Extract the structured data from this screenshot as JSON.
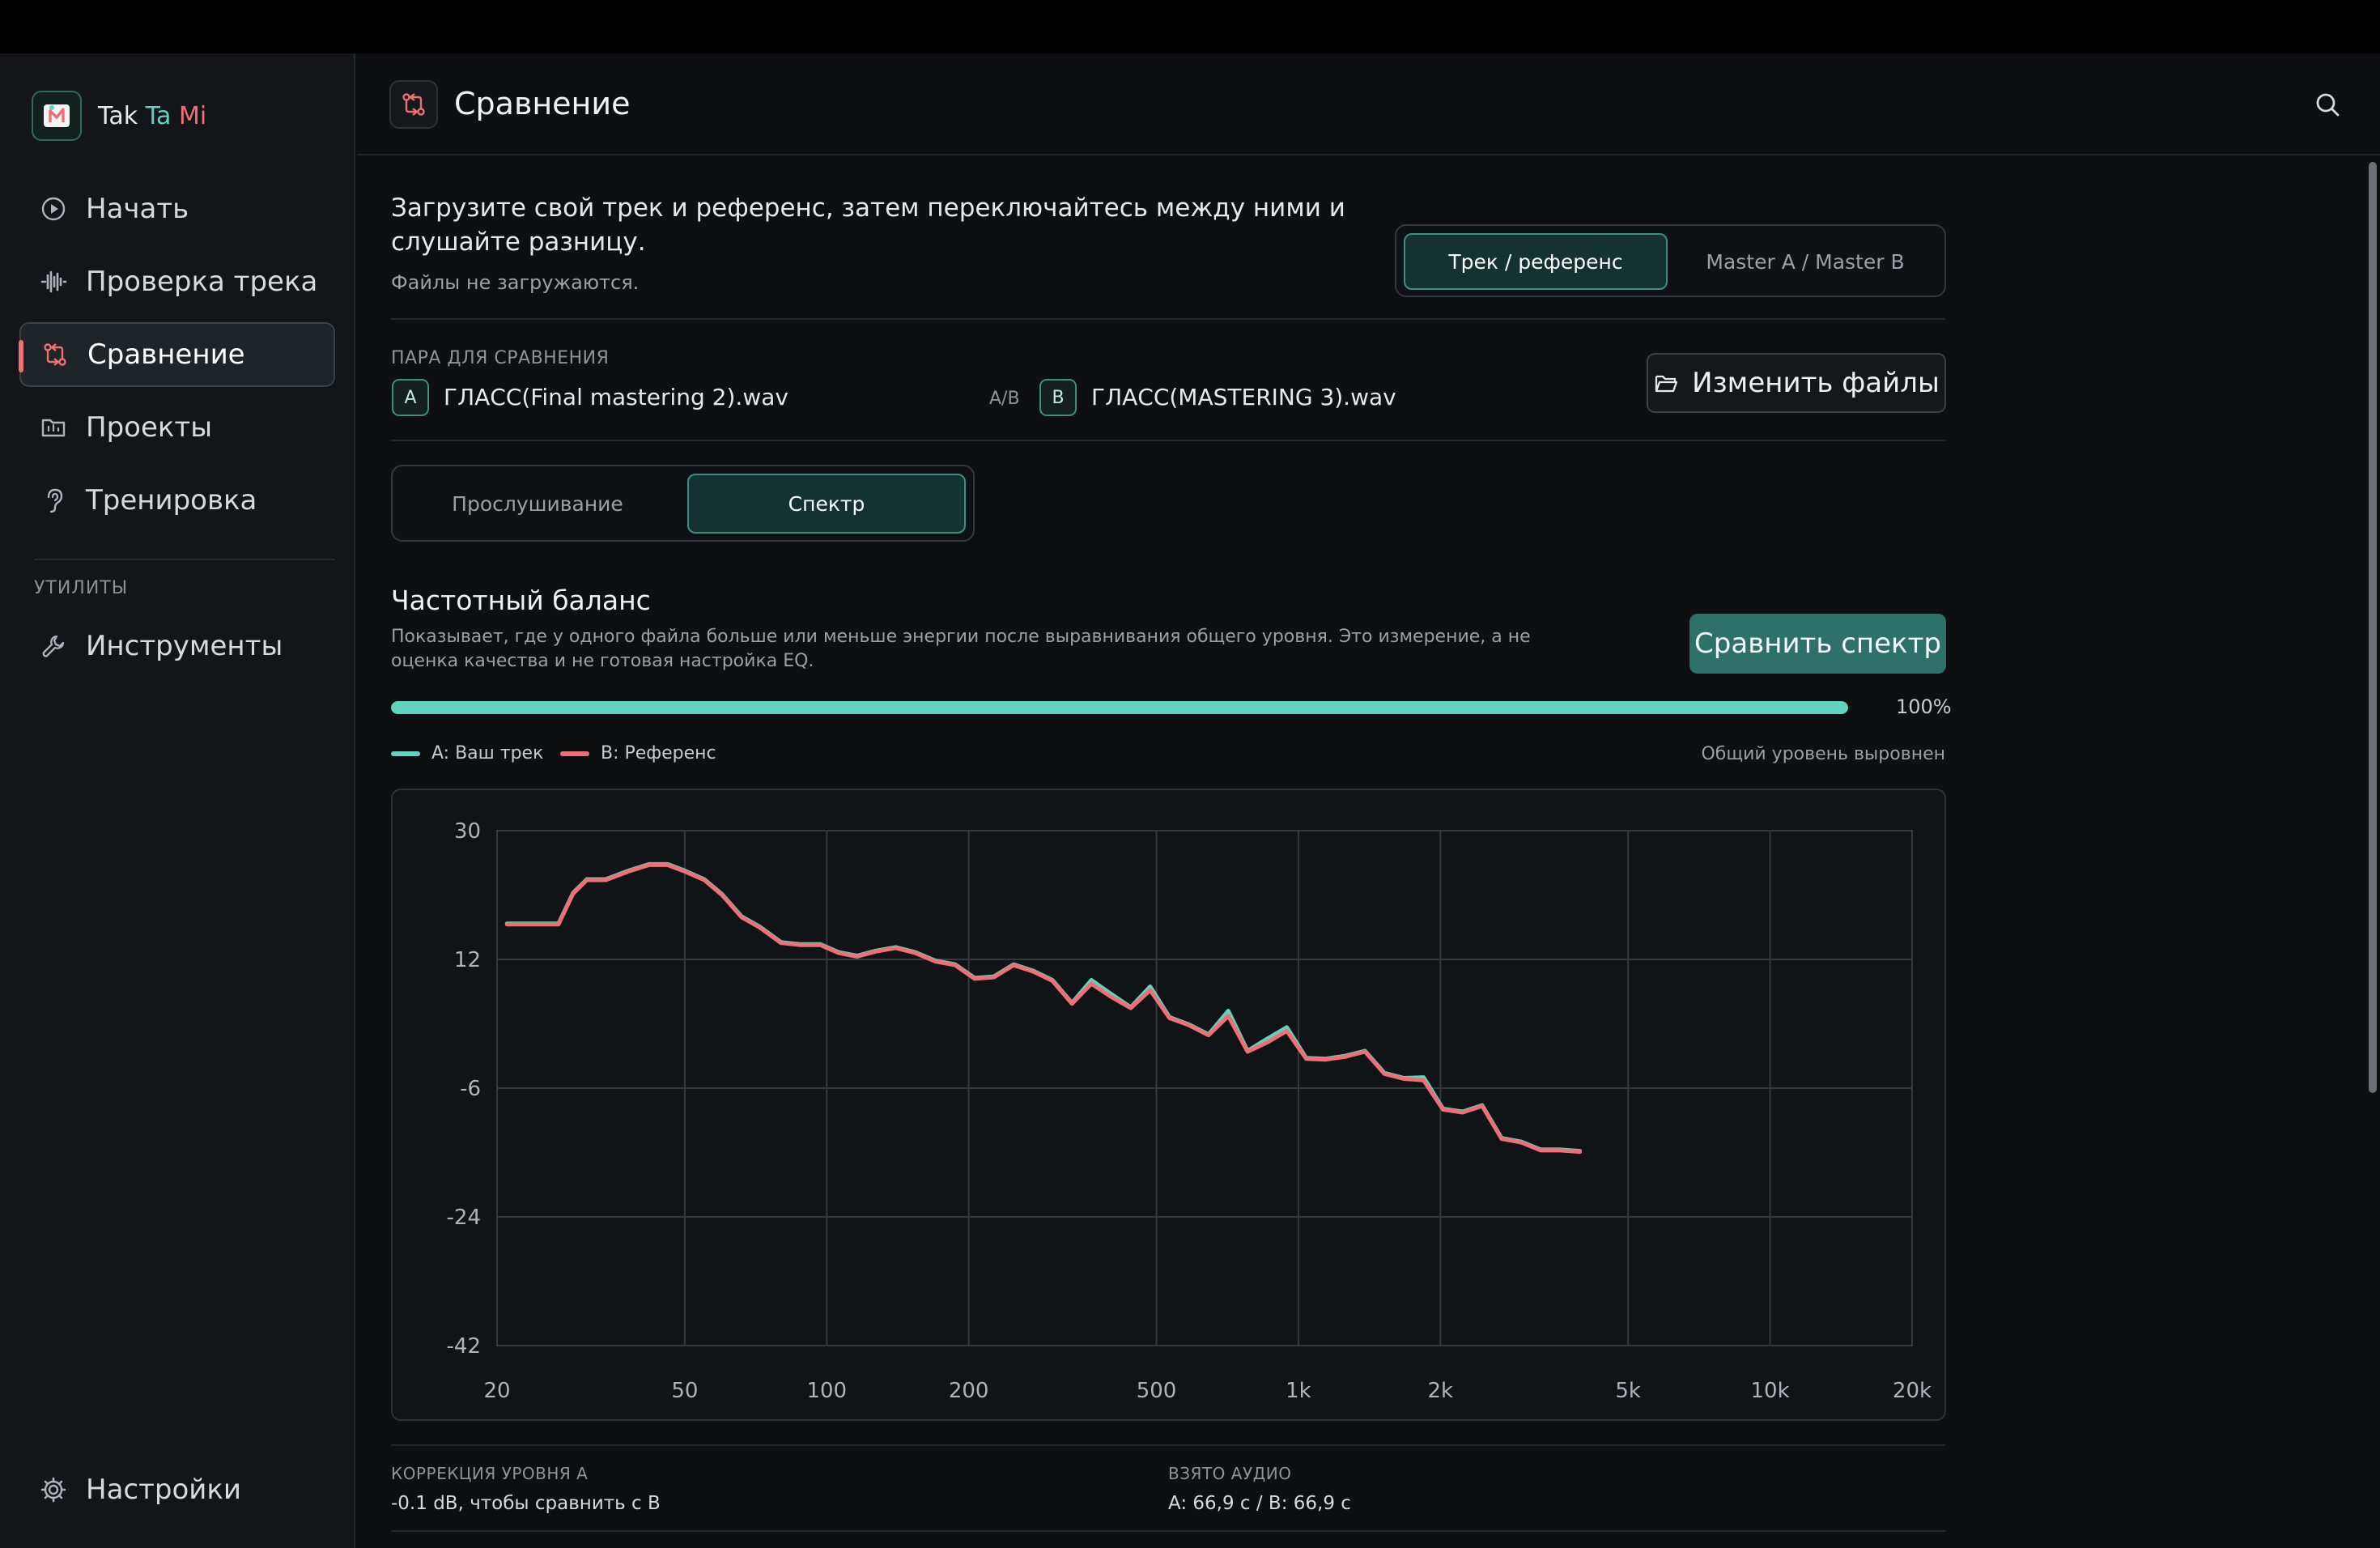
{
  "app": {
    "name_part1": "Tak",
    "name_part2": "Ta",
    "name_part3": "Mi"
  },
  "sidebar": {
    "items": [
      {
        "label": "Начать",
        "icon": "play-circle-icon"
      },
      {
        "label": "Проверка трека",
        "icon": "waveform-icon"
      },
      {
        "label": "Сравнение",
        "icon": "compare-arrows-icon",
        "active": true
      },
      {
        "label": "Проекты",
        "icon": "folder-icon"
      },
      {
        "label": "Тренировка",
        "icon": "ear-icon"
      }
    ],
    "section_label": "УТИЛИТЫ",
    "tools_label": "Инструменты",
    "settings_label": "Настройки"
  },
  "header": {
    "title": "Сравнение"
  },
  "intro": {
    "text": "Загрузите свой трек и референс, затем переключайтесь между ними и слушайте разницу.",
    "subtext": "Файлы не загружаются."
  },
  "mode_toggle": {
    "options": [
      "Трек / референс",
      "Master A / Master B"
    ],
    "selected": "Трек / референс"
  },
  "pair": {
    "label": "ПАРА ДЛЯ СРАВНЕНИЯ",
    "a_badge": "A",
    "a_file": "ГЛАСС(Final mastering 2).wav",
    "ab_label": "A/B",
    "b_badge": "B",
    "b_file": "ГЛАСС(MASTERING 3).wav",
    "change_button": "Изменить файлы"
  },
  "view_toggle": {
    "options": [
      "Прослушивание",
      "Спектр"
    ],
    "selected": "Спектр"
  },
  "freq": {
    "title": "Частотный баланс",
    "description": "Показывает, где у одного файла больше или меньше энергии после выравнивания общего уровня. Это измерение, а не оценка качества и не готовая настройка EQ.",
    "compare_button": "Сравнить спектр",
    "progress": 1.0,
    "progress_text": "100%",
    "level_note": "Общий уровень выровнен"
  },
  "colors": {
    "accent": "#5fd3bf",
    "reference": "#ef6f76",
    "button_primary": "#2d7168"
  },
  "chart_data": {
    "type": "line",
    "x_scale": "log",
    "xlim": [
      20,
      20000
    ],
    "ylim": [
      -42,
      30
    ],
    "x_ticks": [
      20,
      50,
      100,
      200,
      500,
      1000,
      2000,
      5000,
      10000,
      20000
    ],
    "x_tick_labels": [
      "20",
      "50",
      "100",
      "200",
      "500",
      "1k",
      "2k",
      "5k",
      "10k",
      "20k"
    ],
    "y_ticks": [
      30,
      12,
      -6,
      -24,
      -42
    ],
    "y_tick_labels": [
      "30",
      "12",
      "-6",
      "-24",
      "-42"
    ],
    "grid": true,
    "legend_position": "top-left",
    "series": [
      {
        "name": "A: Ваш трек",
        "color": "#5fd3bf",
        "x": [
          21,
          25,
          27,
          29,
          31,
          34,
          38,
          42,
          46,
          50,
          55,
          60,
          66,
          72,
          80,
          88,
          97,
          106,
          116,
          127,
          140,
          154,
          170,
          187,
          206,
          226,
          249,
          274,
          301,
          331,
          364,
          400,
          441,
          485,
          533,
          586,
          645,
          710,
          780,
          859,
          945,
          1039,
          1143,
          1258,
          1384,
          1522,
          1674,
          1842,
          2026,
          2229,
          2452,
          2697,
          2967,
          3264,
          3590,
          3950
        ],
        "y": [
          16.9,
          16.9,
          16.9,
          21.2,
          23.1,
          23.1,
          24.3,
          25.2,
          25.2,
          24.3,
          23.1,
          21.0,
          17.9,
          16.5,
          14.3,
          14.0,
          14.0,
          12.9,
          12.4,
          13.1,
          13.6,
          12.9,
          11.7,
          11.2,
          9.3,
          9.5,
          11.2,
          10.3,
          9.0,
          5.8,
          9.0,
          7.1,
          5.2,
          8.1,
          3.8,
          2.8,
          1.4,
          4.7,
          -0.9,
          0.8,
          2.4,
          -1.9,
          -2.0,
          -1.6,
          -0.9,
          -4.0,
          -4.7,
          -4.6,
          -9.0,
          -9.4,
          -8.5,
          -13.1,
          -13.6,
          -14.7,
          -14.7,
          -14.9
        ]
      },
      {
        "name": "B: Референс",
        "color": "#ef6f76",
        "x": [
          21,
          25,
          27,
          29,
          31,
          34,
          38,
          42,
          46,
          50,
          55,
          60,
          66,
          72,
          80,
          88,
          97,
          106,
          116,
          127,
          140,
          154,
          170,
          187,
          206,
          226,
          249,
          274,
          301,
          331,
          364,
          400,
          441,
          485,
          533,
          586,
          645,
          710,
          780,
          859,
          945,
          1039,
          1143,
          1258,
          1384,
          1522,
          1674,
          1842,
          2026,
          2229,
          2452,
          2697,
          2967,
          3264,
          3590,
          3950
        ],
        "y": [
          16.9,
          16.9,
          16.9,
          21.2,
          23.1,
          23.1,
          24.3,
          25.2,
          25.2,
          24.3,
          23.1,
          21.0,
          17.9,
          16.5,
          14.3,
          14.0,
          14.0,
          12.9,
          12.4,
          13.1,
          13.6,
          12.9,
          11.7,
          11.2,
          9.3,
          9.5,
          11.2,
          10.3,
          9.0,
          5.8,
          8.6,
          6.8,
          5.2,
          7.7,
          3.8,
          2.8,
          1.4,
          4.1,
          -0.9,
          0.4,
          2.0,
          -1.9,
          -2.0,
          -1.6,
          -0.9,
          -4.0,
          -4.7,
          -4.9,
          -9.0,
          -9.4,
          -8.5,
          -13.1,
          -13.6,
          -14.7,
          -14.7,
          -14.9
        ]
      }
    ]
  },
  "stats": {
    "level_label": "КОРРЕКЦИЯ УРОВНЯ А",
    "level_value": "-0.1 dB, чтобы сравнить с B",
    "audio_label": "ВЗЯТО АУДИО",
    "audio_value": "A: 66,9 с / B: 66,9 с"
  }
}
